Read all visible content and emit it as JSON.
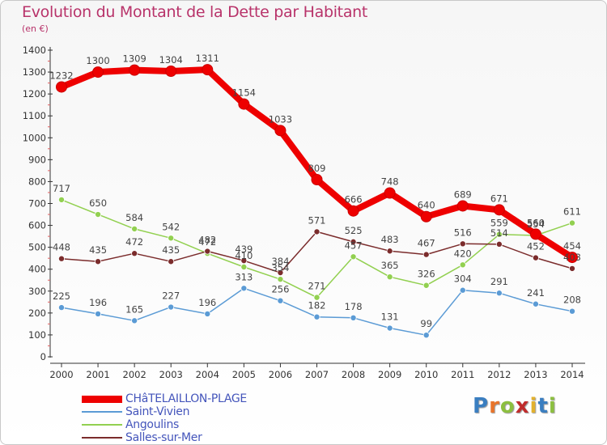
{
  "chart_data": {
    "type": "line",
    "title": "Evolution du Montant de la Dette par Habitant",
    "subtitle": "(en €)",
    "x": [
      "2000",
      "2001",
      "2002",
      "2003",
      "2004",
      "2005",
      "2006",
      "2007",
      "2008",
      "2009",
      "2010",
      "2011",
      "2012",
      "2013",
      "2014"
    ],
    "ylim": [
      0,
      1400
    ],
    "yticks": [
      0,
      100,
      200,
      300,
      400,
      500,
      600,
      700,
      800,
      900,
      1000,
      1100,
      1200,
      1300,
      1400
    ],
    "yticks_labels": [
      "0",
      "100",
      "200",
      "300",
      "400",
      "500",
      "600",
      "700",
      "800",
      "900",
      "1000",
      "1100",
      "1200",
      "1300",
      "1400"
    ],
    "grid": false,
    "legend_position": "bottom-left",
    "series": [
      {
        "name": "CHâTELAILLON-PLAGE",
        "color": "#ee0000",
        "emphasis": true,
        "values": [
          1232,
          1300,
          1309,
          1304,
          1311,
          1154,
          1033,
          809,
          666,
          748,
          640,
          689,
          671,
          560,
          454
        ],
        "labels": [
          "1232",
          "1300",
          "1309",
          "1304",
          "1311",
          "1154",
          "1033",
          "809",
          "666",
          "748",
          "640",
          "689",
          "671",
          "560",
          "454"
        ]
      },
      {
        "name": "Saint-Vivien",
        "color": "#5b9bd5",
        "values": [
          225,
          196,
          165,
          227,
          196,
          313,
          256,
          182,
          178,
          131,
          99,
          304,
          291,
          241,
          208
        ],
        "labels": [
          "225",
          "196",
          "165",
          "227",
          "196",
          "313",
          "256",
          "182",
          "178",
          "131",
          "99",
          "304",
          "291",
          "241",
          "208"
        ]
      },
      {
        "name": "Angoulins",
        "color": "#92d050",
        "values": [
          717,
          650,
          584,
          542,
          472,
          410,
          354,
          271,
          457,
          365,
          326,
          420,
          559,
          554,
          611
        ],
        "labels": [
          "717",
          "650",
          "584",
          "542",
          "472",
          "410",
          "354",
          "271",
          "457",
          "365",
          "326",
          "420",
          "559",
          "554",
          "611"
        ]
      },
      {
        "name": "Salles-sur-Mer",
        "color": "#7b2c2c",
        "values": [
          448,
          435,
          472,
          435,
          482,
          439,
          384,
          571,
          525,
          483,
          467,
          516,
          514,
          452,
          403
        ],
        "labels": [
          "448",
          "435",
          "472",
          "435",
          "482",
          "439",
          "384",
          "571",
          "525",
          "483",
          "467",
          "516",
          "514",
          "452",
          "403"
        ]
      }
    ]
  },
  "brand": {
    "letters": [
      "P",
      "r",
      "o",
      "x",
      "i",
      "t",
      "i"
    ],
    "colors": [
      "#3a7ec0",
      "#e8742a",
      "#8cbf3f",
      "#c02c2c",
      "#e2b12e",
      "#3a7ec0",
      "#8cbf3f"
    ]
  }
}
